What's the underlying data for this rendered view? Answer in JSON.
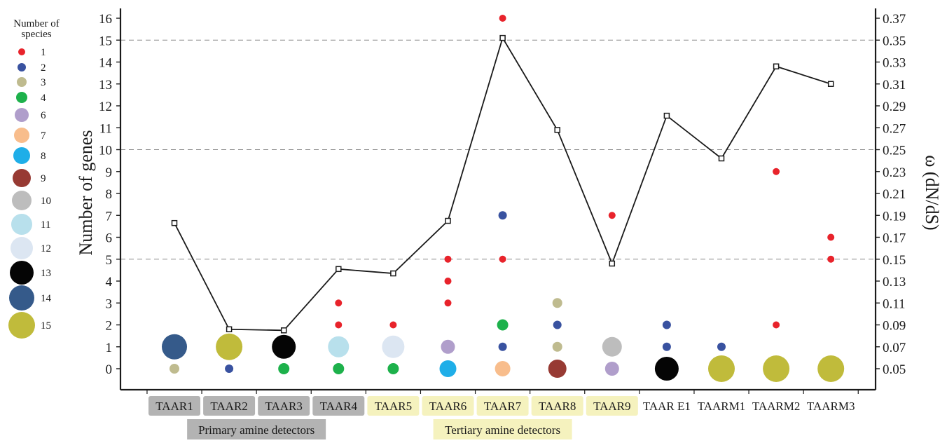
{
  "chart_data": {
    "type": "scatter",
    "categories": [
      "TAAR1",
      "TAAR2",
      "TAAR3",
      "TAAR4",
      "TAAR5",
      "TAAR6",
      "TAAR7",
      "TAAR8",
      "TAAR9",
      "TAAR E1",
      "TAARM1",
      "TAARM2",
      "TAARM3"
    ],
    "category_highlight": [
      "gray",
      "gray",
      "gray",
      "gray",
      "yellow",
      "yellow",
      "yellow",
      "yellow",
      "yellow",
      "none",
      "none",
      "none",
      "none"
    ],
    "groups": [
      {
        "label": "Primary amine detectors",
        "from": 0,
        "to": 3,
        "color": "#b3b3b3"
      },
      {
        "label": "Tertiary amine detectors",
        "from": 4,
        "to": 8,
        "color": "#f5f2be"
      }
    ],
    "ylabel_left": "Number of genes",
    "ylabel_right": "ω (dN/dS)",
    "ylim_left": [
      -0.5,
      16.3
    ],
    "yticks_left": [
      0,
      1,
      2,
      3,
      4,
      5,
      6,
      7,
      8,
      9,
      10,
      11,
      12,
      13,
      14,
      15,
      16
    ],
    "ylim_right": [
      0.0425,
      0.3773
    ],
    "yticks_right": [
      "0.05",
      "0.07",
      "0.09",
      "0.11",
      "0.13",
      "0.15",
      "0.17",
      "0.19",
      "0.21",
      "0.23",
      "0.25",
      "0.27",
      "0.29",
      "0.31",
      "0.33",
      "0.35",
      "0.37"
    ],
    "gridlines_left": [
      5,
      10,
      15
    ],
    "legend": {
      "title": "Number of species",
      "entries": [
        {
          "label": "1",
          "species": 1,
          "color": "#e8232b"
        },
        {
          "label": "2",
          "species": 2,
          "color": "#3952a0"
        },
        {
          "label": "3",
          "species": 3,
          "color": "#bfbb8f"
        },
        {
          "label": "4",
          "species": 4,
          "color": "#1db14b"
        },
        {
          "label": "6",
          "species": 6,
          "color": "#b09ecb"
        },
        {
          "label": "7",
          "species": 7,
          "color": "#f8bd8c"
        },
        {
          "label": "8",
          "species": 8,
          "color": "#1faee8"
        },
        {
          "label": "9",
          "species": 9,
          "color": "#973a33"
        },
        {
          "label": "10",
          "species": 10,
          "color": "#bdbdbd"
        },
        {
          "label": "11",
          "species": 11,
          "color": "#b8e0ec"
        },
        {
          "label": "12",
          "species": 12,
          "color": "#dce6f2"
        },
        {
          "label": "13",
          "species": 13,
          "color": "#050505"
        },
        {
          "label": "14",
          "species": 14,
          "color": "#355a8a"
        },
        {
          "label": "15",
          "species": 15,
          "color": "#c0bb3b"
        }
      ]
    },
    "bubbles": [
      {
        "category": "TAAR1",
        "genes": 0,
        "species": 3
      },
      {
        "category": "TAAR1",
        "genes": 1,
        "species": 14
      },
      {
        "category": "TAAR2",
        "genes": 0,
        "species": 2
      },
      {
        "category": "TAAR2",
        "genes": 1,
        "species": 15
      },
      {
        "category": "TAAR3",
        "genes": 0,
        "species": 4
      },
      {
        "category": "TAAR3",
        "genes": 1,
        "species": 13
      },
      {
        "category": "TAAR4",
        "genes": 0,
        "species": 4
      },
      {
        "category": "TAAR4",
        "genes": 1,
        "species": 11
      },
      {
        "category": "TAAR4",
        "genes": 2,
        "species": 1
      },
      {
        "category": "TAAR4",
        "genes": 3,
        "species": 1
      },
      {
        "category": "TAAR5",
        "genes": 0,
        "species": 4
      },
      {
        "category": "TAAR5",
        "genes": 1,
        "species": 12
      },
      {
        "category": "TAAR5",
        "genes": 2,
        "species": 1
      },
      {
        "category": "TAAR6",
        "genes": 0,
        "species": 8
      },
      {
        "category": "TAAR6",
        "genes": 1,
        "species": 6
      },
      {
        "category": "TAAR6",
        "genes": 3,
        "species": 1
      },
      {
        "category": "TAAR6",
        "genes": 4,
        "species": 1
      },
      {
        "category": "TAAR6",
        "genes": 5,
        "species": 1
      },
      {
        "category": "TAAR7",
        "genes": 0,
        "species": 7
      },
      {
        "category": "TAAR7",
        "genes": 1,
        "species": 2
      },
      {
        "category": "TAAR7",
        "genes": 2,
        "species": 4
      },
      {
        "category": "TAAR7",
        "genes": 5,
        "species": 1
      },
      {
        "category": "TAAR7",
        "genes": 7,
        "species": 2
      },
      {
        "category": "TAAR7",
        "genes": 16,
        "species": 1
      },
      {
        "category": "TAAR8",
        "genes": 0,
        "species": 9
      },
      {
        "category": "TAAR8",
        "genes": 1,
        "species": 3
      },
      {
        "category": "TAAR8",
        "genes": 2,
        "species": 2
      },
      {
        "category": "TAAR8",
        "genes": 3,
        "species": 3
      },
      {
        "category": "TAAR9",
        "genes": 0,
        "species": 6
      },
      {
        "category": "TAAR9",
        "genes": 1,
        "species": 10
      },
      {
        "category": "TAAR9",
        "genes": 7,
        "species": 1
      },
      {
        "category": "TAAR E1",
        "genes": 0,
        "species": 13
      },
      {
        "category": "TAAR E1",
        "genes": 1,
        "species": 2
      },
      {
        "category": "TAAR E1",
        "genes": 2,
        "species": 2
      },
      {
        "category": "TAARM1",
        "genes": 0,
        "species": 15
      },
      {
        "category": "TAARM1",
        "genes": 1,
        "species": 2
      },
      {
        "category": "TAARM2",
        "genes": 0,
        "species": 15
      },
      {
        "category": "TAARM2",
        "genes": 2,
        "species": 1
      },
      {
        "category": "TAARM2",
        "genes": 9,
        "species": 1
      },
      {
        "category": "TAARM3",
        "genes": 0,
        "species": 15
      },
      {
        "category": "TAARM3",
        "genes": 5,
        "species": 1
      },
      {
        "category": "TAARM3",
        "genes": 6,
        "species": 1
      }
    ],
    "omega": [
      0.183,
      0.086,
      0.085,
      0.141,
      0.137,
      0.185,
      0.352,
      0.268,
      0.146,
      0.281,
      0.242,
      0.326,
      0.31
    ]
  }
}
